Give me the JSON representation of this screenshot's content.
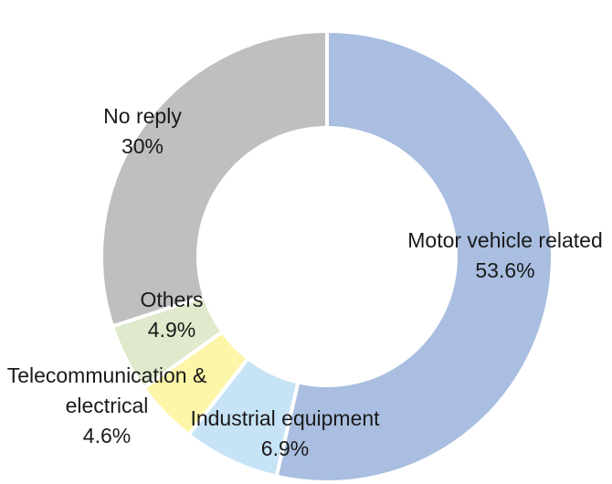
{
  "chart_data": {
    "type": "pie",
    "subtype": "donut",
    "slices": [
      {
        "name": "Motor vehicle related",
        "value": 53.6,
        "value_label": "53.6%",
        "color": "#a9bee0"
      },
      {
        "name": "Industrial equipment",
        "value": 6.9,
        "value_label": "6.9%",
        "color": "#c7e3f6"
      },
      {
        "name": "Telecommunication & electrical",
        "value": 4.6,
        "value_label": "4.6%",
        "color": "#fdf6a8"
      },
      {
        "name": "Others",
        "value": 4.9,
        "value_label": "4.9%",
        "color": "#dfe9cb"
      },
      {
        "name": "No reply",
        "value": 30,
        "value_label": "30%",
        "color": "#bfbfbf"
      }
    ],
    "title": "",
    "legend": "none"
  }
}
